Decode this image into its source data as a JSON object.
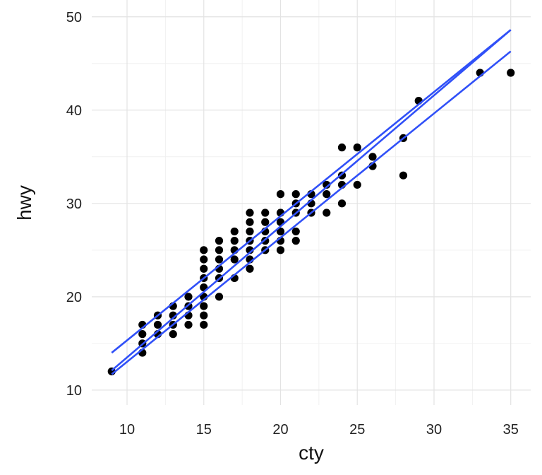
{
  "chart_data": {
    "type": "scatter",
    "title": "",
    "xlabel": "cty",
    "ylabel": "hwy",
    "xlim": [
      7.7,
      36.3
    ],
    "ylim": [
      8.4,
      51.8
    ],
    "x_ticks": [
      10,
      15,
      20,
      25,
      30,
      35
    ],
    "y_ticks": [
      10,
      20,
      30,
      40,
      50
    ],
    "grid": true,
    "legend": "none",
    "point_color": "#000000",
    "line_color": "#3050F8",
    "points": [
      [
        9,
        12
      ],
      [
        11,
        14
      ],
      [
        11,
        15
      ],
      [
        11,
        16
      ],
      [
        11,
        17
      ],
      [
        12,
        16
      ],
      [
        12,
        17
      ],
      [
        12,
        18
      ],
      [
        13,
        16
      ],
      [
        13,
        17
      ],
      [
        13,
        18
      ],
      [
        13,
        19
      ],
      [
        14,
        17
      ],
      [
        14,
        18
      ],
      [
        14,
        19
      ],
      [
        14,
        20
      ],
      [
        15,
        17
      ],
      [
        15,
        18
      ],
      [
        15,
        19
      ],
      [
        15,
        20
      ],
      [
        15,
        21
      ],
      [
        15,
        22
      ],
      [
        15,
        23
      ],
      [
        15,
        24
      ],
      [
        15,
        25
      ],
      [
        16,
        20
      ],
      [
        16,
        22
      ],
      [
        16,
        23
      ],
      [
        16,
        24
      ],
      [
        16,
        25
      ],
      [
        16,
        26
      ],
      [
        17,
        22
      ],
      [
        17,
        24
      ],
      [
        17,
        25
      ],
      [
        17,
        26
      ],
      [
        17,
        27
      ],
      [
        18,
        23
      ],
      [
        18,
        24
      ],
      [
        18,
        25
      ],
      [
        18,
        26
      ],
      [
        18,
        27
      ],
      [
        18,
        28
      ],
      [
        18,
        29
      ],
      [
        19,
        25
      ],
      [
        19,
        26
      ],
      [
        19,
        27
      ],
      [
        19,
        28
      ],
      [
        19,
        29
      ],
      [
        20,
        25
      ],
      [
        20,
        26
      ],
      [
        20,
        27
      ],
      [
        20,
        28
      ],
      [
        20,
        29
      ],
      [
        20,
        31
      ],
      [
        21,
        26
      ],
      [
        21,
        27
      ],
      [
        21,
        29
      ],
      [
        21,
        30
      ],
      [
        21,
        31
      ],
      [
        22,
        29
      ],
      [
        22,
        30
      ],
      [
        22,
        31
      ],
      [
        23,
        29
      ],
      [
        23,
        31
      ],
      [
        23,
        32
      ],
      [
        24,
        30
      ],
      [
        24,
        32
      ],
      [
        24,
        33
      ],
      [
        24,
        36
      ],
      [
        25,
        32
      ],
      [
        25,
        36
      ],
      [
        26,
        34
      ],
      [
        26,
        35
      ],
      [
        28,
        33
      ],
      [
        28,
        37
      ],
      [
        29,
        41
      ],
      [
        33,
        44
      ],
      [
        35,
        44
      ]
    ],
    "fit_lines": [
      {
        "x": [
          9,
          35
        ],
        "y": [
          14.0,
          48.6
        ]
      },
      {
        "x": [
          9,
          35
        ],
        "y": [
          12.1,
          48.6
        ]
      },
      {
        "x": [
          9,
          35
        ],
        "y": [
          11.7,
          46.3
        ]
      }
    ]
  }
}
